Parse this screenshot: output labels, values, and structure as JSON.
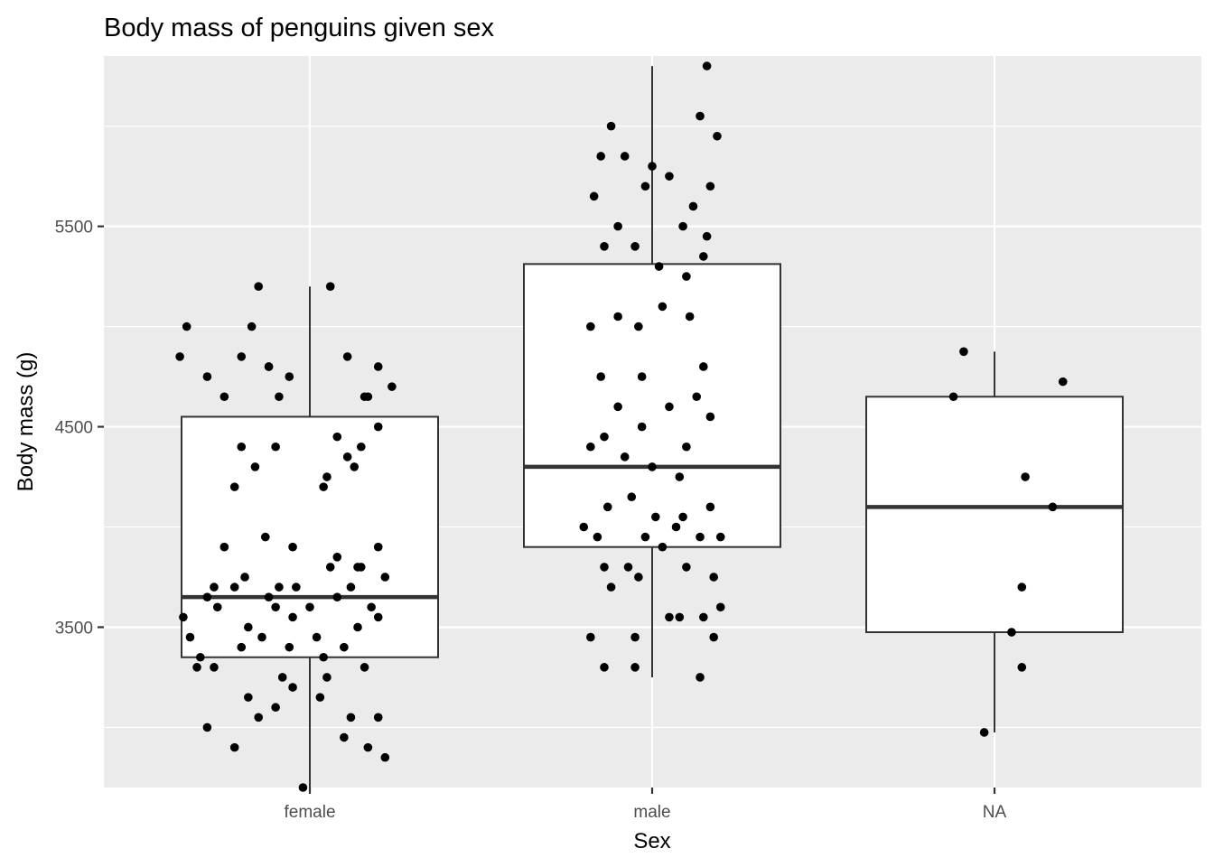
{
  "chart_data": {
    "type": "box",
    "title": "Body mass of penguins given sex",
    "xlabel": "Sex",
    "ylabel": "Body mass (g)",
    "categories": [
      "female",
      "male",
      "NA"
    ],
    "yticks": [
      3500,
      4500,
      5500
    ],
    "ylim": [
      2700,
      6350
    ],
    "grid": true,
    "legend": "none",
    "boxes": [
      {
        "category": "female",
        "min": 2700,
        "q1": 3350,
        "median": 3650,
        "q3": 4550,
        "max": 5200
      },
      {
        "category": "male",
        "min": 3250,
        "q1": 3900,
        "median": 4300,
        "q3": 5312,
        "max": 6300
      },
      {
        "category": "NA",
        "min": 2975,
        "q1": 3475,
        "median": 4100,
        "q3": 4650,
        "max": 4875
      }
    ],
    "points": {
      "female": [
        [
          -0.38,
          4850
        ],
        [
          -0.36,
          5000
        ],
        [
          -0.25,
          4650
        ],
        [
          -0.2,
          4400
        ],
        [
          -0.17,
          5000
        ],
        [
          -0.09,
          4650
        ],
        [
          0.04,
          4200
        ],
        [
          0.11,
          4850
        ],
        [
          0.16,
          4650
        ],
        [
          0.17,
          4650
        ],
        [
          0.2,
          4800
        ],
        [
          0.24,
          4700
        ],
        [
          0.06,
          5200
        ],
        [
          -0.15,
          5200
        ],
        [
          -0.12,
          4800
        ],
        [
          0.13,
          4300
        ],
        [
          -0.06,
          4750
        ],
        [
          -0.3,
          4750
        ],
        [
          -0.2,
          4850
        ],
        [
          -0.12,
          4800
        ],
        [
          -0.22,
          4200
        ],
        [
          -0.16,
          4300
        ],
        [
          -0.1,
          4400
        ],
        [
          0.2,
          4500
        ],
        [
          0.05,
          4250
        ],
        [
          0.08,
          4450
        ],
        [
          0.15,
          4400
        ],
        [
          0.11,
          4350
        ],
        [
          -0.37,
          3550
        ],
        [
          -0.3,
          3650
        ],
        [
          -0.22,
          3700
        ],
        [
          -0.18,
          3500
        ],
        [
          -0.1,
          3600
        ],
        [
          -0.05,
          3550
        ],
        [
          0.02,
          3450
        ],
        [
          0.08,
          3650
        ],
        [
          0.12,
          3700
        ],
        [
          0.18,
          3600
        ],
        [
          0.22,
          3750
        ],
        [
          -0.32,
          3350
        ],
        [
          -0.28,
          3300
        ],
        [
          -0.2,
          3400
        ],
        [
          -0.14,
          3450
        ],
        [
          -0.08,
          3250
        ],
        [
          0.04,
          3350
        ],
        [
          0.1,
          3400
        ],
        [
          0.16,
          3300
        ],
        [
          -0.35,
          3450
        ],
        [
          -0.27,
          3600
        ],
        [
          -0.12,
          3650
        ],
        [
          -0.04,
          3700
        ],
        [
          0.06,
          3800
        ],
        [
          0.14,
          3500
        ],
        [
          0.2,
          3550
        ],
        [
          -0.3,
          3000
        ],
        [
          -0.22,
          2900
        ],
        [
          -0.1,
          3100
        ],
        [
          0.03,
          3150
        ],
        [
          0.1,
          2950
        ],
        [
          0.17,
          2900
        ],
        [
          0.2,
          3050
        ],
        [
          -0.15,
          3050
        ],
        [
          -0.05,
          3200
        ],
        [
          -0.02,
          2700
        ],
        [
          0.12,
          3050
        ],
        [
          0.22,
          2850
        ],
        [
          -0.18,
          3150
        ],
        [
          -0.25,
          3900
        ],
        [
          -0.13,
          3950
        ],
        [
          -0.05,
          3900
        ],
        [
          0.08,
          3850
        ],
        [
          0.14,
          3800
        ],
        [
          0.2,
          3900
        ],
        [
          -0.28,
          3700
        ],
        [
          -0.19,
          3750
        ],
        [
          -0.09,
          3700
        ],
        [
          0.0,
          3600
        ],
        [
          0.15,
          3800
        ],
        [
          -0.33,
          3300
        ],
        [
          -0.06,
          3400
        ],
        [
          0.05,
          3250
        ]
      ],
      "male": [
        [
          -0.12,
          6000
        ],
        [
          0.16,
          6300
        ],
        [
          0.14,
          6050
        ],
        [
          0.19,
          5950
        ],
        [
          -0.15,
          5850
        ],
        [
          -0.08,
          5850
        ],
        [
          0.0,
          5800
        ],
        [
          -0.02,
          5700
        ],
        [
          0.05,
          5750
        ],
        [
          0.17,
          5700
        ],
        [
          -0.17,
          5650
        ],
        [
          -0.1,
          5500
        ],
        [
          0.09,
          5500
        ],
        [
          0.12,
          5600
        ],
        [
          0.16,
          5450
        ],
        [
          -0.14,
          5400
        ],
        [
          -0.05,
          5400
        ],
        [
          0.02,
          5300
        ],
        [
          0.15,
          5350
        ],
        [
          0.1,
          5250
        ],
        [
          -0.18,
          5000
        ],
        [
          -0.1,
          5050
        ],
        [
          -0.04,
          5000
        ],
        [
          0.03,
          5100
        ],
        [
          0.11,
          5050
        ],
        [
          -0.15,
          4750
        ],
        [
          -0.03,
          4750
        ],
        [
          0.15,
          4800
        ],
        [
          -0.1,
          4600
        ],
        [
          0.05,
          4600
        ],
        [
          0.13,
          4650
        ],
        [
          -0.14,
          4450
        ],
        [
          -0.03,
          4500
        ],
        [
          0.1,
          4400
        ],
        [
          0.17,
          4550
        ],
        [
          -0.18,
          4400
        ],
        [
          -0.08,
          4350
        ],
        [
          0.0,
          4300
        ],
        [
          0.08,
          4250
        ],
        [
          -0.2,
          4000
        ],
        [
          -0.13,
          4100
        ],
        [
          -0.06,
          4150
        ],
        [
          0.01,
          4050
        ],
        [
          0.09,
          4050
        ],
        [
          0.17,
          4100
        ],
        [
          -0.16,
          3950
        ],
        [
          -0.02,
          3950
        ],
        [
          0.07,
          4000
        ],
        [
          0.14,
          3950
        ],
        [
          0.2,
          3950
        ],
        [
          -0.14,
          3800
        ],
        [
          -0.07,
          3800
        ],
        [
          0.03,
          3900
        ],
        [
          0.1,
          3800
        ],
        [
          0.18,
          3750
        ],
        [
          -0.12,
          3700
        ],
        [
          -0.04,
          3750
        ],
        [
          0.08,
          3550
        ],
        [
          0.15,
          3550
        ],
        [
          0.2,
          3600
        ],
        [
          -0.18,
          3450
        ],
        [
          -0.14,
          3300
        ],
        [
          -0.05,
          3450
        ],
        [
          -0.05,
          3300
        ],
        [
          0.05,
          3550
        ],
        [
          0.14,
          3250
        ],
        [
          0.18,
          3450
        ]
      ],
      "NA": [
        [
          -0.09,
          4875
        ],
        [
          -0.12,
          4650
        ],
        [
          0.2,
          4725
        ],
        [
          0.09,
          4250
        ],
        [
          0.17,
          4100
        ],
        [
          0.08,
          3700
        ],
        [
          0.05,
          3475
        ],
        [
          0.08,
          3300
        ],
        [
          -0.03,
          2975
        ]
      ]
    }
  }
}
